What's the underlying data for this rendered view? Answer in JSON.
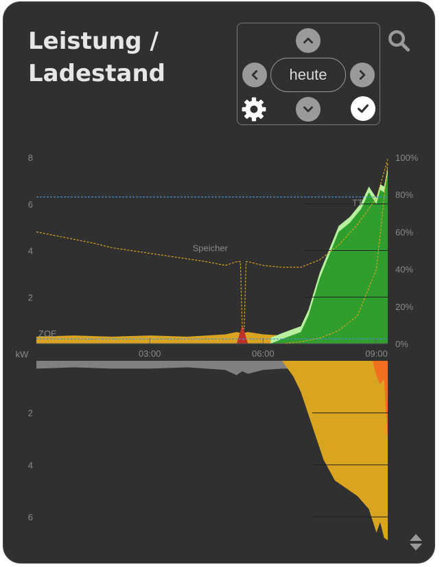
{
  "title": {
    "line1": "Leistung /",
    "line2": "Ladestand"
  },
  "nav": {
    "period_label": "heute",
    "buttons": {
      "up": "chevron-up",
      "down": "chevron-down",
      "prev": "chevron-left",
      "next": "chevron-right",
      "settings": "gear",
      "confirm": "check",
      "search": "magnifier",
      "sort": "sort-arrows"
    }
  },
  "colors": {
    "background": "#303030",
    "pv": "#2f9e2f",
    "pv_peak": "#b8f0a0",
    "home": "#d9a520",
    "grid": "#f07020",
    "battery_charge": "#c0302a",
    "battery_discharge": "#808080",
    "speicher_line": "#d9a520",
    "vehicle_line": "#4a8fd0"
  },
  "chart_data": {
    "type": "area",
    "top": {
      "ylabel": "kW",
      "ylim": [
        0,
        8
      ],
      "y_ticks": [
        "8",
        "6",
        "4",
        "2"
      ],
      "y2lim": [
        0,
        100
      ],
      "y2_ticks": [
        "100%",
        "80%",
        "60%",
        "40%",
        "20%",
        "0%"
      ],
      "x_ticks": [
        "03:00",
        "06:00",
        "09:00"
      ],
      "series": [
        {
          "name": "Speicher",
          "type": "line",
          "axis": "right",
          "x": [
            0,
            0.5,
            1,
            1.5,
            2,
            2.5,
            3,
            3.5,
            4,
            4.5,
            5,
            5.3,
            5.4,
            5.45,
            5.5,
            5.55,
            5.6,
            6,
            6.5,
            7,
            7.5,
            8,
            8.5,
            9,
            9.3
          ],
          "values": [
            60,
            58,
            56,
            54,
            51.5,
            50,
            48.5,
            47,
            45.5,
            44,
            42,
            44,
            44,
            8,
            8,
            44,
            44,
            42,
            41,
            41,
            45,
            53,
            64,
            78,
            99
          ]
        },
        {
          "type": "line",
          "axis": "right",
          "x": [
            6.5,
            7,
            7.5,
            8,
            8.5,
            9,
            9.3
          ],
          "values": [
            0,
            1,
            3,
            7,
            15,
            40,
            97
          ]
        },
        {
          "name": "ZOE",
          "type": "line",
          "axis": "left",
          "x": [
            0,
            9.3
          ],
          "values": [
            0.2,
            0.2
          ]
        },
        {
          "name": "TT",
          "type": "line",
          "axis": "left",
          "x": [
            0,
            9.3
          ],
          "values": [
            6.3,
            6.3
          ]
        },
        {
          "type": "area",
          "axis": "left",
          "x": [
            0,
            1,
            2,
            3,
            4,
            5,
            5.3,
            5.45,
            5.6,
            6,
            6.5,
            7
          ],
          "values": [
            0.3,
            0.35,
            0.3,
            0.35,
            0.3,
            0.4,
            0.5,
            0.45,
            0.5,
            0.4,
            0.35,
            0.3
          ]
        },
        {
          "type": "area",
          "axis": "left",
          "x": [
            5.3,
            5.45,
            5.6
          ],
          "values": [
            0,
            0.8,
            0
          ]
        },
        {
          "type": "area",
          "axis": "left",
          "x": [
            6.2,
            6.5,
            7,
            7.2,
            7.5,
            7.8,
            8,
            8.3,
            8.6,
            8.8,
            9,
            9.1,
            9.2,
            9.3
          ],
          "values": [
            0,
            0.2,
            0.5,
            1.2,
            2.8,
            4,
            4.8,
            5.2,
            5.8,
            6.5,
            6,
            6.6,
            6.5,
            7.3
          ]
        }
      ]
    },
    "bottom": {
      "ylim": [
        0,
        7
      ],
      "y_ticks": [
        "2",
        "4",
        "6"
      ],
      "x_ticks": [
        "03:00",
        "06:00",
        "09:00"
      ],
      "series": [
        {
          "type": "area",
          "x": [
            0,
            1,
            2,
            3,
            4,
            5,
            5.3,
            5.45,
            5.6,
            6,
            6.5,
            7
          ],
          "values": [
            0.3,
            0.25,
            0.3,
            0.3,
            0.25,
            0.35,
            0.55,
            0.4,
            0.5,
            0.35,
            0.3,
            0.3
          ]
        },
        {
          "type": "area",
          "x": [
            6.5,
            6.8,
            7,
            7.3,
            7.6,
            7.9,
            8.2,
            8.5,
            8.8,
            9,
            9.1,
            9.2,
            9.3
          ],
          "values": [
            0,
            0.6,
            1.2,
            2.5,
            3.8,
            4.6,
            4.9,
            5.2,
            5.7,
            6.6,
            6.2,
            6.8,
            6.9
          ]
        },
        {
          "type": "area",
          "x": [
            8.9,
            9,
            9.1,
            9.2,
            9.3
          ],
          "values": [
            0,
            0.6,
            0.9,
            0.7,
            3
          ]
        }
      ]
    }
  }
}
